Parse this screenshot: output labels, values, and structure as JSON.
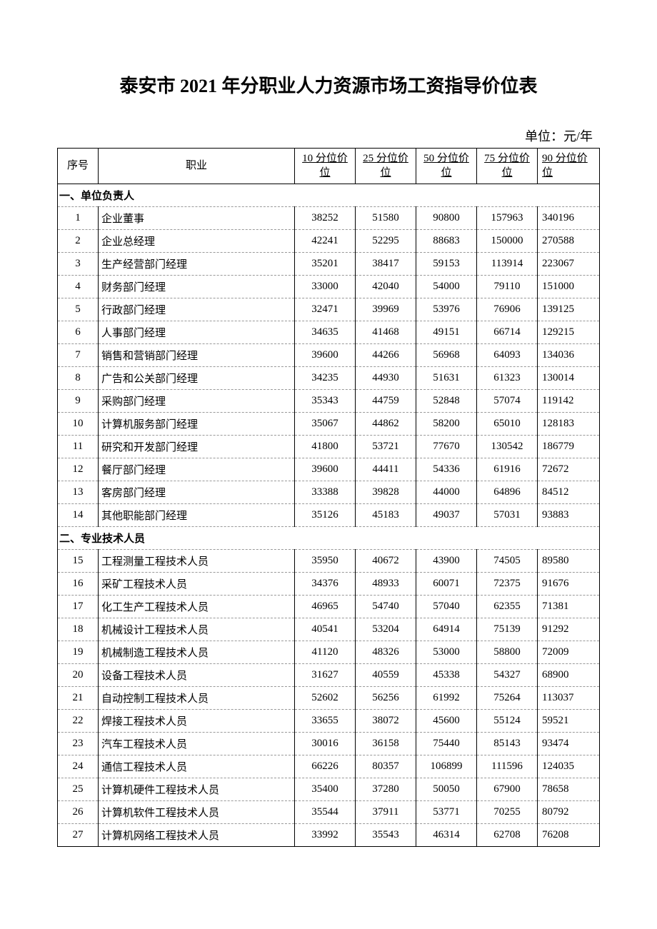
{
  "title": "泰安市 2021 年分职业人力资源市场工资指导价位表",
  "unit_label": "单位：元/年",
  "headers": {
    "seq": "序号",
    "job": "职业",
    "p10": "10 分位价位",
    "p25": "25 分位价位",
    "p50": "50 分位价位",
    "p75": "75 分位价位",
    "p90": "90 分位价位"
  },
  "sections": [
    {
      "label": "一、单位负责人",
      "rows": [
        {
          "seq": "1",
          "job": "企业董事",
          "p10": "38252",
          "p25": "51580",
          "p50": "90800",
          "p75": "157963",
          "p90": "340196"
        },
        {
          "seq": "2",
          "job": "企业总经理",
          "p10": "42241",
          "p25": "52295",
          "p50": "88683",
          "p75": "150000",
          "p90": "270588"
        },
        {
          "seq": "3",
          "job": "生产经营部门经理",
          "p10": "35201",
          "p25": "38417",
          "p50": "59153",
          "p75": "113914",
          "p90": "223067"
        },
        {
          "seq": "4",
          "job": "财务部门经理",
          "p10": "33000",
          "p25": "42040",
          "p50": "54000",
          "p75": "79110",
          "p90": "151000"
        },
        {
          "seq": "5",
          "job": "行政部门经理",
          "p10": "32471",
          "p25": "39969",
          "p50": "53976",
          "p75": "76906",
          "p90": "139125"
        },
        {
          "seq": "6",
          "job": "人事部门经理",
          "p10": "34635",
          "p25": "41468",
          "p50": "49151",
          "p75": "66714",
          "p90": "129215"
        },
        {
          "seq": "7",
          "job": "销售和营销部门经理",
          "p10": "39600",
          "p25": "44266",
          "p50": "56968",
          "p75": "64093",
          "p90": "134036"
        },
        {
          "seq": "8",
          "job": "广告和公关部门经理",
          "p10": "34235",
          "p25": "44930",
          "p50": "51631",
          "p75": "61323",
          "p90": "130014"
        },
        {
          "seq": "9",
          "job": "采购部门经理",
          "p10": "35343",
          "p25": "44759",
          "p50": "52848",
          "p75": "57074",
          "p90": "119142"
        },
        {
          "seq": "10",
          "job": "计算机服务部门经理",
          "p10": "35067",
          "p25": "44862",
          "p50": "58200",
          "p75": "65010",
          "p90": "128183"
        },
        {
          "seq": "11",
          "job": "研究和开发部门经理",
          "p10": "41800",
          "p25": "53721",
          "p50": "77670",
          "p75": "130542",
          "p90": "186779"
        },
        {
          "seq": "12",
          "job": "餐厅部门经理",
          "p10": "39600",
          "p25": "44411",
          "p50": "54336",
          "p75": "61916",
          "p90": "72672"
        },
        {
          "seq": "13",
          "job": "客房部门经理",
          "p10": "33388",
          "p25": "39828",
          "p50": "44000",
          "p75": "64896",
          "p90": "84512"
        },
        {
          "seq": "14",
          "job": "其他职能部门经理",
          "p10": "35126",
          "p25": "45183",
          "p50": "49037",
          "p75": "57031",
          "p90": "93883"
        }
      ]
    },
    {
      "label": "二、专业技术人员",
      "rows": [
        {
          "seq": "15",
          "job": "工程测量工程技术人员",
          "p10": "35950",
          "p25": "40672",
          "p50": "43900",
          "p75": "74505",
          "p90": "89580"
        },
        {
          "seq": "16",
          "job": "采矿工程技术人员",
          "p10": "34376",
          "p25": "48933",
          "p50": "60071",
          "p75": "72375",
          "p90": "91676"
        },
        {
          "seq": "17",
          "job": "化工生产工程技术人员",
          "p10": "46965",
          "p25": "54740",
          "p50": "57040",
          "p75": "62355",
          "p90": "71381"
        },
        {
          "seq": "18",
          "job": "机械设计工程技术人员",
          "p10": "40541",
          "p25": "53204",
          "p50": "64914",
          "p75": "75139",
          "p90": "91292"
        },
        {
          "seq": "19",
          "job": "机械制造工程技术人员",
          "p10": "41120",
          "p25": "48326",
          "p50": "53000",
          "p75": "58800",
          "p90": "72009"
        },
        {
          "seq": "20",
          "job": "设备工程技术人员",
          "p10": "31627",
          "p25": "40559",
          "p50": "45338",
          "p75": "54327",
          "p90": "68900"
        },
        {
          "seq": "21",
          "job": "自动控制工程技术人员",
          "p10": "52602",
          "p25": "56256",
          "p50": "61992",
          "p75": "75264",
          "p90": "113037"
        },
        {
          "seq": "22",
          "job": "焊接工程技术人员",
          "p10": "33655",
          "p25": "38072",
          "p50": "45600",
          "p75": "55124",
          "p90": "59521"
        },
        {
          "seq": "23",
          "job": "汽车工程技术人员",
          "p10": "30016",
          "p25": "36158",
          "p50": "75440",
          "p75": "85143",
          "p90": "93474"
        },
        {
          "seq": "24",
          "job": "通信工程技术人员",
          "p10": "66226",
          "p25": "80357",
          "p50": "106899",
          "p75": "111596",
          "p90": "124035"
        },
        {
          "seq": "25",
          "job": "计算机硬件工程技术人员",
          "p10": "35400",
          "p25": "37280",
          "p50": "50050",
          "p75": "67900",
          "p90": "78658"
        },
        {
          "seq": "26",
          "job": "计算机软件工程技术人员",
          "p10": "35544",
          "p25": "37911",
          "p50": "53771",
          "p75": "70255",
          "p90": "80792"
        },
        {
          "seq": "27",
          "job": "计算机网络工程技术人员",
          "p10": "33992",
          "p25": "35543",
          "p50": "46314",
          "p75": "62708",
          "p90": "76208"
        }
      ]
    }
  ],
  "style": {
    "background_color": "#ffffff",
    "text_color": "#000000",
    "border_color": "#000000",
    "dashed_color": "#999999",
    "title_fontsize": 26,
    "body_fontsize": 15,
    "unit_fontsize": 18
  }
}
